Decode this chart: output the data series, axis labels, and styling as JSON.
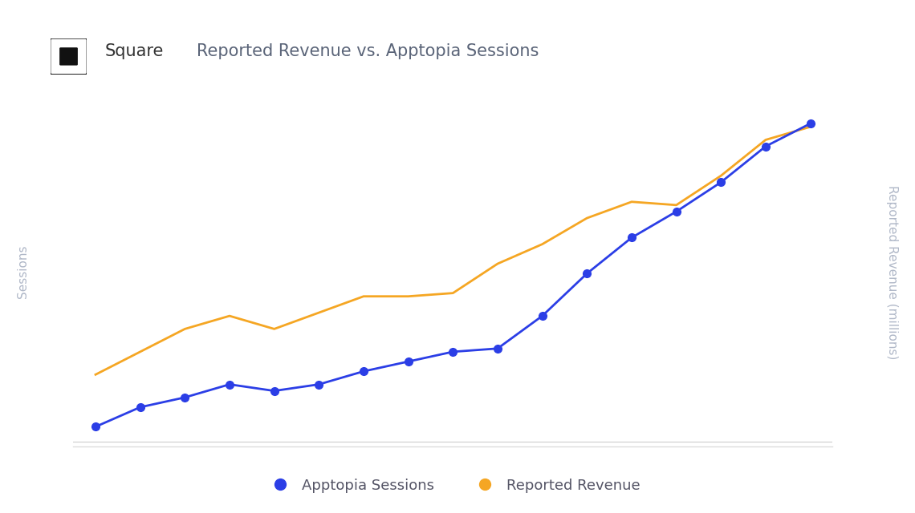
{
  "title": "Reported Revenue vs. Apptopia Sessions",
  "square_label": "Square",
  "left_ylabel": "Sessions",
  "right_ylabel": "Reported Revenue (millions)",
  "legend_labels": [
    "Apptopia Sessions",
    "Reported Revenue"
  ],
  "blue_color": "#2B3EE6",
  "orange_color": "#F5A623",
  "background_color": "#FFFFFF",
  "label_color": "#B0B8C8",
  "title_color": "#5A6478",
  "square_text_color": "#333333",
  "legend_text_color": "#555566",
  "blue_x": [
    0,
    1,
    2,
    3,
    4,
    5,
    6,
    7,
    8,
    9,
    10,
    11,
    12,
    13,
    14,
    15,
    16
  ],
  "blue_y": [
    0.04,
    0.1,
    0.13,
    0.17,
    0.15,
    0.17,
    0.21,
    0.24,
    0.27,
    0.28,
    0.38,
    0.51,
    0.62,
    0.7,
    0.79,
    0.9,
    0.97
  ],
  "orange_x": [
    0,
    1,
    2,
    3,
    4,
    5,
    6,
    7,
    8,
    9,
    10,
    11,
    12,
    13,
    14,
    15,
    16
  ],
  "orange_y": [
    0.2,
    0.27,
    0.34,
    0.38,
    0.34,
    0.39,
    0.44,
    0.44,
    0.45,
    0.54,
    0.6,
    0.68,
    0.73,
    0.72,
    0.81,
    0.92,
    0.96
  ],
  "figsize": [
    11.4,
    6.4
  ],
  "dpi": 100
}
